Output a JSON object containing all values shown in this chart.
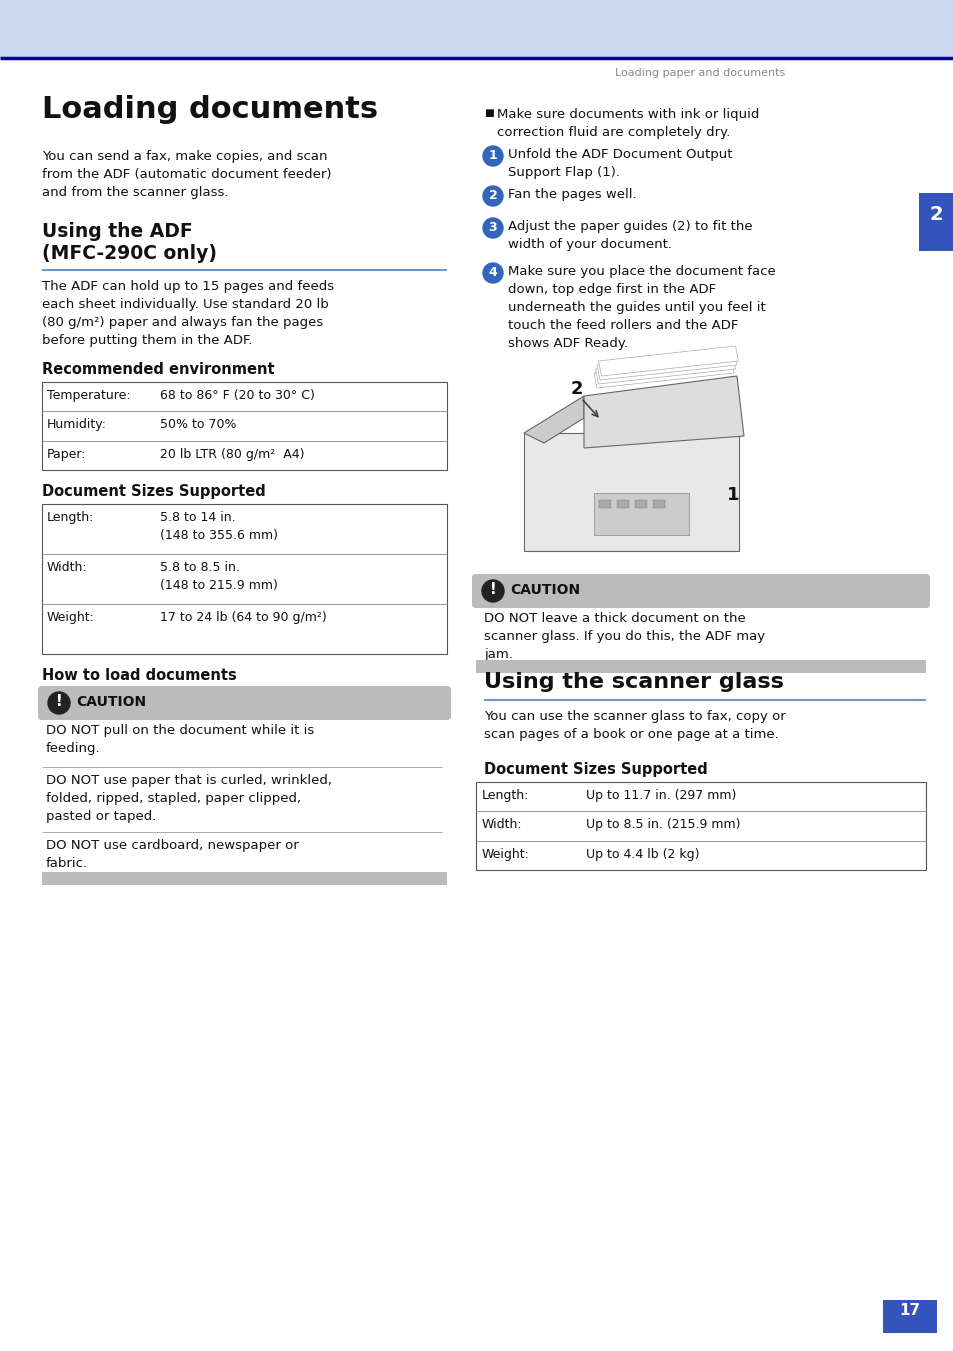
{
  "page_bg": "#ffffff",
  "header_bg": "#ccd9f0",
  "header_line_color": "#0000bb",
  "header_text": "Loading paper and documents",
  "header_text_color": "#888888",
  "tab_color": "#3355bb",
  "tab_text": "2",
  "main_title": "Loading documents",
  "intro_body": "You can send a fax, make copies, and scan\nfrom the ADF (automatic document feeder)\nand from the scanner glass.",
  "section1_title_line1": "Using the ADF",
  "section1_title_line2": "(MFC-290C only)",
  "section1_body": "The ADF can hold up to 15 pages and feeds\neach sheet individually. Use standard 20 lb\n(80 g/m²) paper and always fan the pages\nbefore putting them in the ADF.",
  "rec_env_title": "Recommended environment",
  "rec_env_rows": [
    [
      "Temperature:",
      "68 to 86° F (20 to 30° C)"
    ],
    [
      "Humidity:",
      "50% to 70%"
    ],
    [
      "Paper:",
      "20 lb LTR (80 g/m²  A4)"
    ]
  ],
  "doc_sizes_title": "Document Sizes Supported",
  "doc_sizes_rows": [
    [
      "Length:",
      "5.8 to 14 in.\n(148 to 355.6 mm)"
    ],
    [
      "Width:",
      "5.8 to 8.5 in.\n(148 to 215.9 mm)"
    ],
    [
      "Weight:",
      "17 to 24 lb (64 to 90 g/m²)"
    ]
  ],
  "how_load_title": "How to load documents",
  "caution_bg": "#bbbbbb",
  "caution_text1": "DO NOT pull on the document while it is\nfeeding.",
  "caution_text2": "DO NOT use paper that is curled, wrinkled,\nfolded, ripped, stapled, paper clipped,\npasted or taped.",
  "caution_text3": "DO NOT use cardboard, newspaper or\nfabric.",
  "right_bullet": "Make sure documents with ink or liquid\ncorrection fluid are completely dry.",
  "right_steps": [
    "Unfold the ADF Document Output\nSupport Flap (1).",
    "Fan the pages well.",
    "Adjust the paper guides (2) to fit the\nwidth of your document.",
    "Make sure you place the document face\ndown, top edge first in the ADF\nunderneath the guides until you feel it\ntouch the feed rollers and the ADF\nshows ADF Ready."
  ],
  "caution2_text": "DO NOT leave a thick document on the\nscanner glass. If you do this, the ADF may\njam.",
  "scanner_title": "Using the scanner glass",
  "scanner_body": "You can use the scanner glass to fax, copy or\nscan pages of a book or one page at a time.",
  "scanner_doc_title": "Document Sizes Supported",
  "scanner_rows": [
    [
      "Length:",
      "Up to 11.7 in. (297 mm)"
    ],
    [
      "Width:",
      "Up to 8.5 in. (215.9 mm)"
    ],
    [
      "Weight:",
      "Up to 4.4 lb (2 kg)"
    ]
  ],
  "page_number": "17",
  "blue_line_color": "#6699cc",
  "step_circle_color": "#3366bb",
  "body_color": "#111111"
}
